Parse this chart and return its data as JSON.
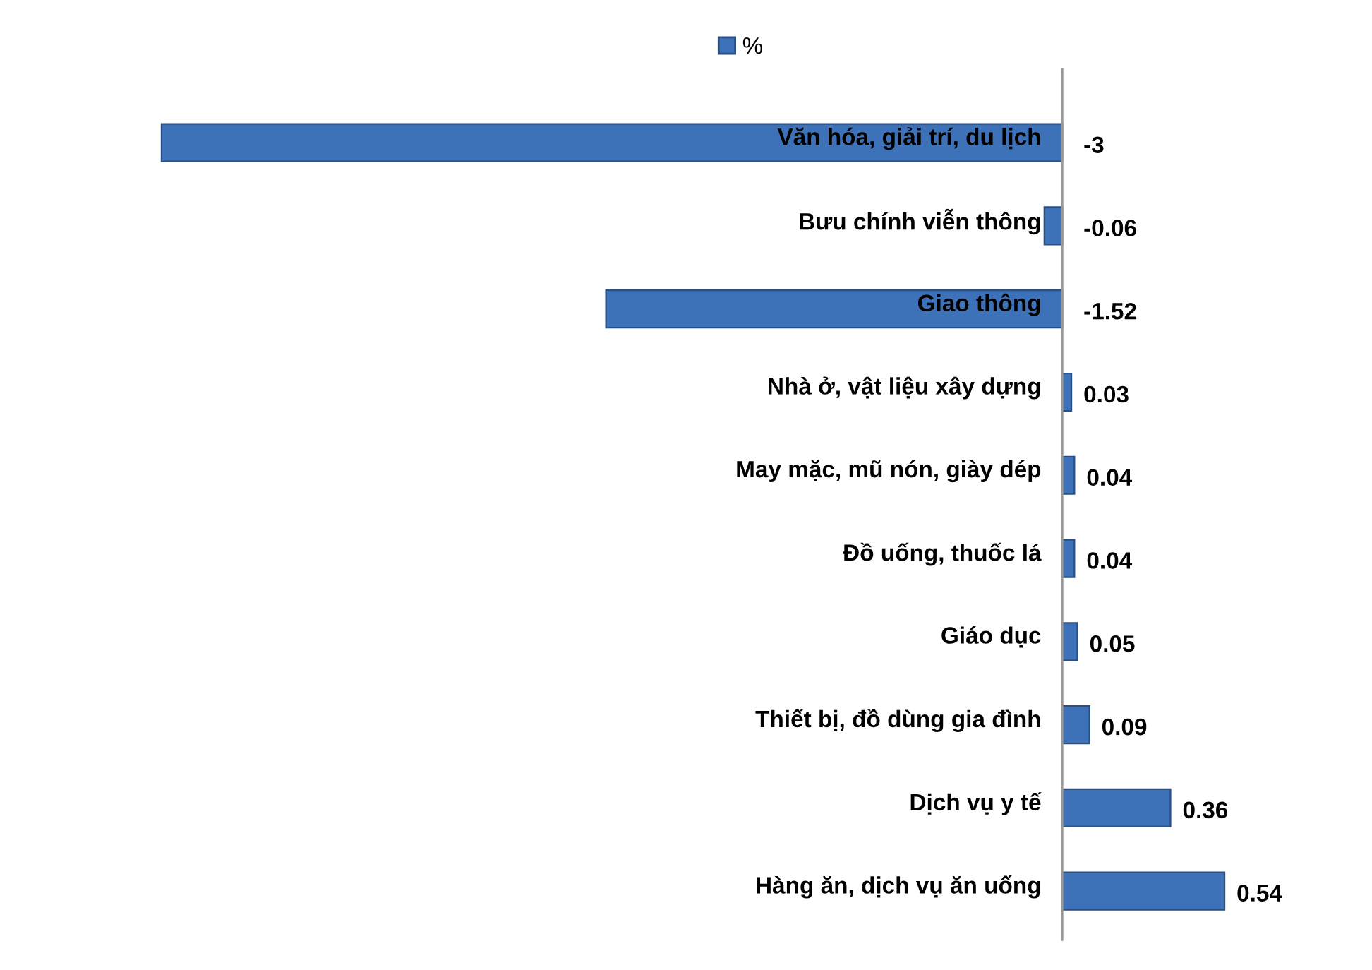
{
  "chart_data": {
    "type": "bar",
    "orientation": "horizontal",
    "categories": [
      "Văn hóa, giải trí, du lịch",
      "Bưu chính viễn thông",
      "Giao thông",
      "Nhà ở, vật liệu xây dựng",
      "May mặc, mũ nón, giày dép",
      "Đồ uống, thuốc lá",
      "Giáo dục",
      "Thiết bị, đồ dùng gia đình",
      "Dịch vụ y tế",
      "Hàng ăn, dịch vụ ăn uống"
    ],
    "series": [
      {
        "name": "%",
        "color": "#3d72b8",
        "values": [
          -3,
          -0.06,
          -1.52,
          0.03,
          0.04,
          0.04,
          0.05,
          0.09,
          0.36,
          0.54
        ]
      }
    ],
    "data_labels": true,
    "legend": "top"
  }
}
